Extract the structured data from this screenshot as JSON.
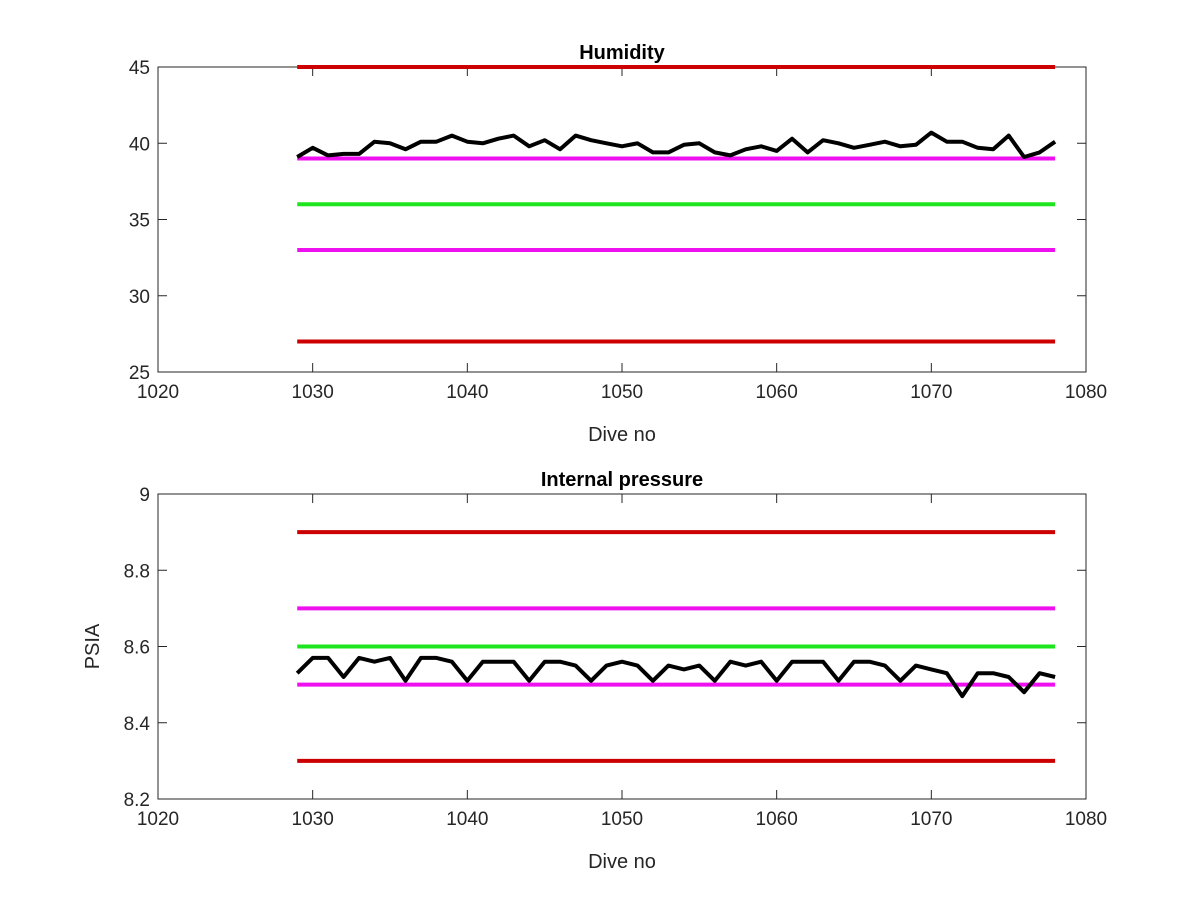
{
  "chart_data": [
    {
      "type": "line",
      "title": "Humidity",
      "xlabel": "Dive no",
      "ylabel": "",
      "xlim": [
        1020,
        1080
      ],
      "ylim": [
        25,
        45
      ],
      "xticks": [
        1020,
        1030,
        1040,
        1050,
        1060,
        1070,
        1080
      ],
      "yticks": [
        25,
        30,
        35,
        40,
        45
      ],
      "grid": false,
      "legend": "none",
      "series": [
        {
          "color": "#000000",
          "x": [
            1029,
            1030,
            1031,
            1032,
            1033,
            1034,
            1035,
            1036,
            1037,
            1038,
            1039,
            1040,
            1041,
            1042,
            1043,
            1044,
            1045,
            1046,
            1047,
            1048,
            1049,
            1050,
            1051,
            1052,
            1053,
            1054,
            1055,
            1056,
            1057,
            1058,
            1059,
            1060,
            1061,
            1062,
            1063,
            1064,
            1065,
            1066,
            1067,
            1068,
            1069,
            1070,
            1071,
            1072,
            1073,
            1074,
            1075,
            1076,
            1077,
            1078
          ],
          "y": [
            39.1,
            39.7,
            39.2,
            39.3,
            39.3,
            40.1,
            40.0,
            39.6,
            40.1,
            40.1,
            40.5,
            40.1,
            40.0,
            40.3,
            40.5,
            39.8,
            40.2,
            39.6,
            40.5,
            40.2,
            40.0,
            39.8,
            40.0,
            39.4,
            39.4,
            39.9,
            40.0,
            39.4,
            39.2,
            39.6,
            39.8,
            39.5,
            40.3,
            39.4,
            40.2,
            40.0,
            39.7,
            39.9,
            40.1,
            39.8,
            39.9,
            40.7,
            40.1,
            40.1,
            39.7,
            39.6,
            40.5,
            39.1,
            39.4,
            40.1
          ]
        },
        {
          "color": "#cc0000",
          "x": [
            1029,
            1078
          ],
          "y": [
            45,
            45
          ]
        },
        {
          "color": "#ee10ee",
          "x": [
            1029,
            1078
          ],
          "y": [
            39,
            39
          ]
        },
        {
          "color": "#1ee61e",
          "x": [
            1029,
            1078
          ],
          "y": [
            36,
            36
          ]
        },
        {
          "color": "#ee10ee",
          "x": [
            1029,
            1078
          ],
          "y": [
            33,
            33
          ]
        },
        {
          "color": "#cc0000",
          "x": [
            1029,
            1078
          ],
          "y": [
            27,
            27
          ]
        }
      ]
    },
    {
      "type": "line",
      "title": "Internal pressure",
      "xlabel": "Dive no",
      "ylabel": "PSIA",
      "xlim": [
        1020,
        1080
      ],
      "ylim": [
        8.2,
        9
      ],
      "xticks": [
        1020,
        1030,
        1040,
        1050,
        1060,
        1070,
        1080
      ],
      "yticks": [
        8.2,
        8.4,
        8.6,
        8.8,
        9
      ],
      "yticklabels": [
        "8.2",
        "8.4",
        "8.6",
        "8.8",
        "9"
      ],
      "grid": false,
      "legend": "none",
      "series": [
        {
          "color": "#000000",
          "x": [
            1029,
            1030,
            1031,
            1032,
            1033,
            1034,
            1035,
            1036,
            1037,
            1038,
            1039,
            1040,
            1041,
            1042,
            1043,
            1044,
            1045,
            1046,
            1047,
            1048,
            1049,
            1050,
            1051,
            1052,
            1053,
            1054,
            1055,
            1056,
            1057,
            1058,
            1059,
            1060,
            1061,
            1062,
            1063,
            1064,
            1065,
            1066,
            1067,
            1068,
            1069,
            1070,
            1071,
            1072,
            1073,
            1074,
            1075,
            1076,
            1077,
            1078
          ],
          "y": [
            8.53,
            8.57,
            8.57,
            8.52,
            8.57,
            8.56,
            8.57,
            8.51,
            8.57,
            8.57,
            8.56,
            8.51,
            8.56,
            8.56,
            8.56,
            8.51,
            8.56,
            8.56,
            8.55,
            8.51,
            8.55,
            8.56,
            8.55,
            8.51,
            8.55,
            8.54,
            8.55,
            8.51,
            8.56,
            8.55,
            8.56,
            8.51,
            8.56,
            8.56,
            8.56,
            8.51,
            8.56,
            8.56,
            8.55,
            8.51,
            8.55,
            8.54,
            8.53,
            8.47,
            8.53,
            8.53,
            8.52,
            8.48,
            8.53,
            8.52
          ]
        },
        {
          "color": "#cc0000",
          "x": [
            1029,
            1078
          ],
          "y": [
            8.9,
            8.9
          ]
        },
        {
          "color": "#ee10ee",
          "x": [
            1029,
            1078
          ],
          "y": [
            8.7,
            8.7
          ]
        },
        {
          "color": "#1ee61e",
          "x": [
            1029,
            1078
          ],
          "y": [
            8.6,
            8.6
          ]
        },
        {
          "color": "#ee10ee",
          "x": [
            1029,
            1078
          ],
          "y": [
            8.5,
            8.5
          ]
        },
        {
          "color": "#cc0000",
          "x": [
            1029,
            1078
          ],
          "y": [
            8.3,
            8.3
          ]
        }
      ]
    }
  ]
}
